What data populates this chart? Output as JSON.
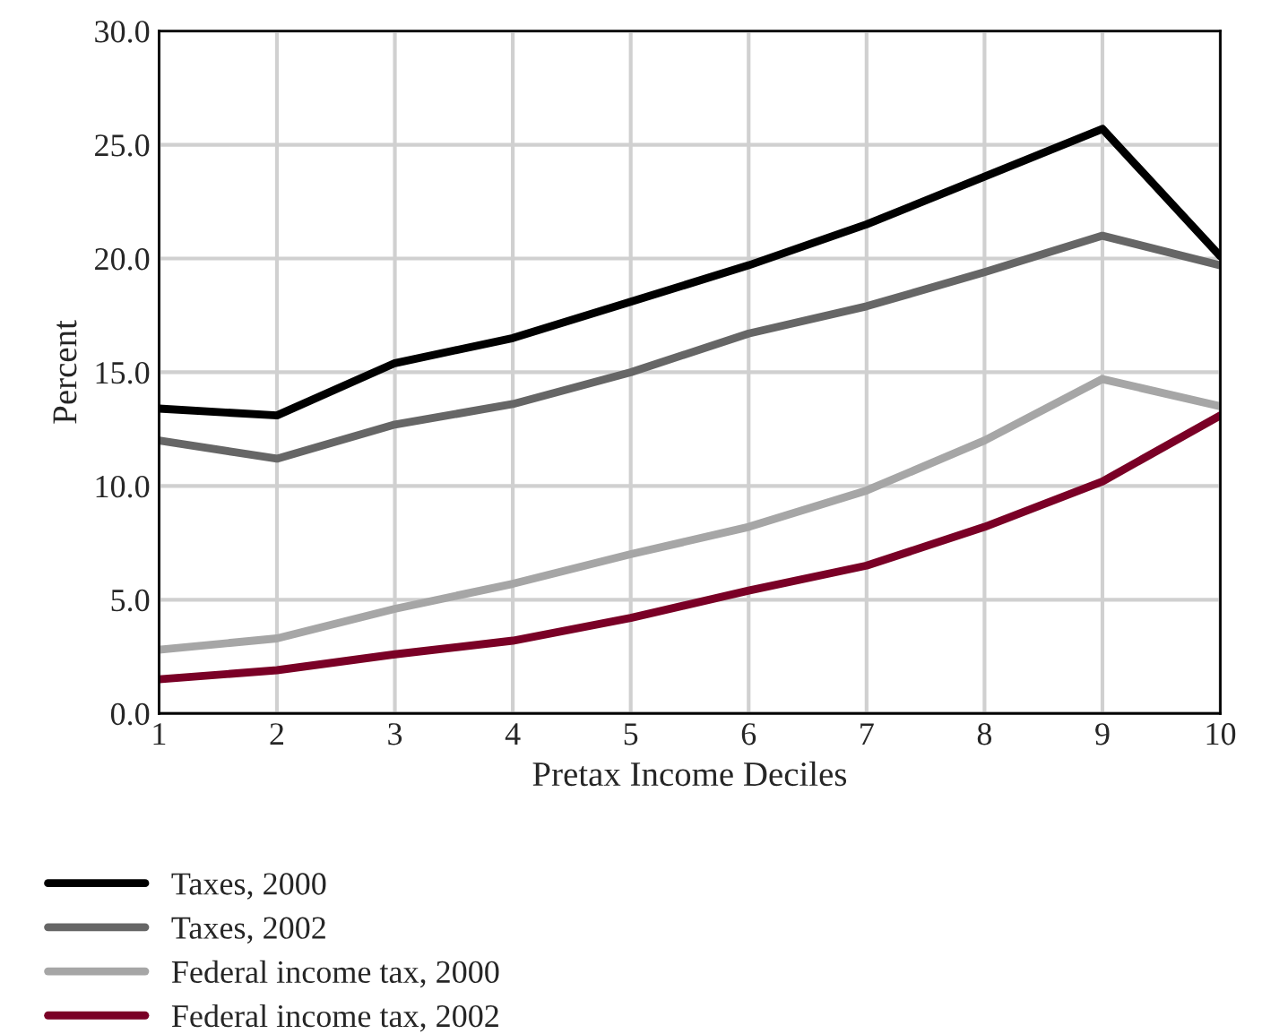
{
  "chart_data": {
    "type": "line",
    "xlabel": "Pretax Income Deciles",
    "ylabel": "Percent",
    "x": [
      1,
      2,
      3,
      4,
      5,
      6,
      7,
      8,
      9,
      10
    ],
    "series": [
      {
        "name": "Taxes, 2000",
        "color": "#000000",
        "values": [
          13.4,
          13.1,
          15.4,
          16.5,
          18.1,
          19.7,
          21.5,
          23.6,
          25.7,
          20.1
        ]
      },
      {
        "name": "Taxes, 2002",
        "color": "#666666",
        "values": [
          12.0,
          11.2,
          12.7,
          13.6,
          15.0,
          16.7,
          17.9,
          19.4,
          21.0,
          19.7
        ]
      },
      {
        "name": "Federal income tax, 2000",
        "color": "#a6a6a6",
        "values": [
          2.8,
          3.3,
          4.6,
          5.7,
          7.0,
          8.2,
          9.8,
          12.0,
          14.7,
          13.5
        ]
      },
      {
        "name": "Federal income tax, 2002",
        "color": "#7a0026",
        "values": [
          1.5,
          1.9,
          2.6,
          3.2,
          4.2,
          5.4,
          6.5,
          8.2,
          10.2,
          13.1
        ]
      }
    ],
    "xlim": [
      1,
      10
    ],
    "xticks": [
      1,
      2,
      3,
      4,
      5,
      6,
      7,
      8,
      9,
      10
    ],
    "ylim": [
      0,
      30
    ],
    "yticks": [
      {
        "value": 0,
        "label": "0.0"
      },
      {
        "value": 5,
        "label": "5.0"
      },
      {
        "value": 10,
        "label": "10.0"
      },
      {
        "value": 15,
        "label": "15.0"
      },
      {
        "value": 20,
        "label": "20.0"
      },
      {
        "value": 25,
        "label": "25.0"
      },
      {
        "value": 30,
        "label": "30.0"
      }
    ],
    "grid": true,
    "legend": "bottom",
    "line_style": "solid",
    "marker": "none"
  }
}
